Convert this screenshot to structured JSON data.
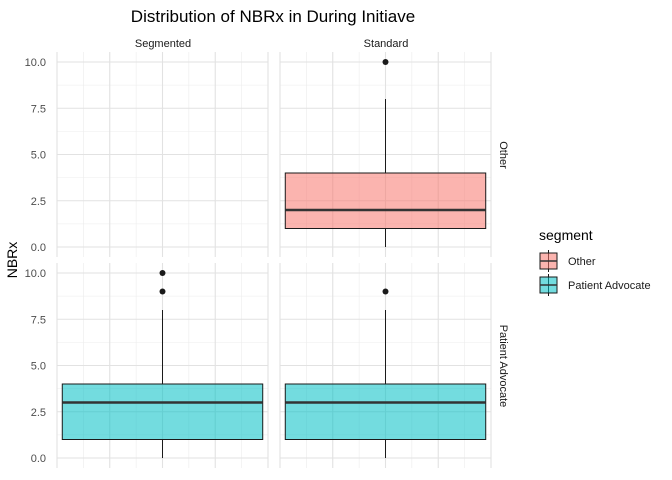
{
  "chart_data": {
    "type": "boxplot",
    "title": "Distribution of NBRx in During Initiave",
    "ylabel": "NBRx",
    "xlabel": "",
    "ylim": [
      0,
      10
    ],
    "yticks": [
      0.0,
      2.5,
      5.0,
      7.5,
      10.0
    ],
    "ytick_labels": [
      "0.0",
      "2.5",
      "5.0",
      "7.5",
      "10.0"
    ],
    "facet_columns": [
      "Segmented",
      "Standard"
    ],
    "facet_rows": [
      "Other",
      "Patient Advocate"
    ],
    "grid": true,
    "legend": {
      "title": "segment",
      "placement": "right",
      "entries": [
        {
          "label": "Other",
          "fill": "#F8766D"
        },
        {
          "label": "Patient Advocate",
          "fill": "#00BFC4"
        }
      ]
    },
    "panels": [
      {
        "row": "Other",
        "col": "Segmented",
        "box": null
      },
      {
        "row": "Other",
        "col": "Standard",
        "box": {
          "min": 0,
          "q1": 1,
          "median": 2,
          "q3": 4,
          "max": 8,
          "outliers": [
            10
          ]
        }
      },
      {
        "row": "Patient Advocate",
        "col": "Segmented",
        "box": {
          "min": 0,
          "q1": 1,
          "median": 3,
          "q3": 4,
          "max": 8,
          "outliers": [
            9,
            10
          ]
        }
      },
      {
        "row": "Patient Advocate",
        "col": "Standard",
        "box": {
          "min": 0,
          "q1": 1,
          "median": 3,
          "q3": 4,
          "max": 8,
          "outliers": [
            9
          ]
        }
      }
    ]
  }
}
